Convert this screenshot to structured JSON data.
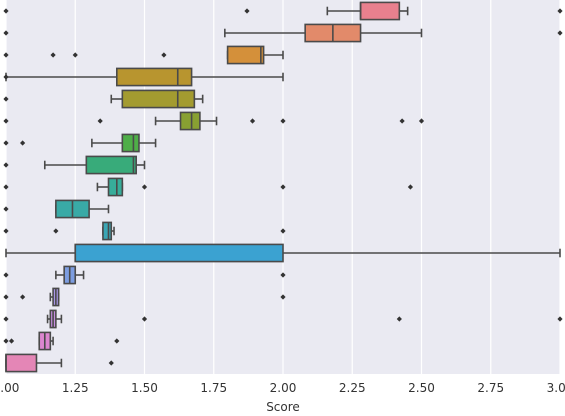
{
  "chart_data": {
    "type": "boxplot",
    "orientation": "horizontal",
    "xlabel": "Score",
    "xlim": [
      1.0,
      3.0
    ],
    "x_ticks": [
      "1.00",
      "1.25",
      "1.50",
      "1.75",
      "2.00",
      "2.25",
      "2.50",
      "2.75",
      "3.00"
    ],
    "grid": true,
    "legend": "none",
    "boxes": [
      {
        "color": "#e8808e",
        "whisker_low": 2.16,
        "q1": 2.28,
        "median": 2.28,
        "q3": 2.42,
        "whisker_high": 2.45,
        "outliers": [
          1.0,
          1.87,
          3.0
        ]
      },
      {
        "color": "#e28a6a",
        "whisker_low": 1.79,
        "q1": 2.08,
        "median": 2.18,
        "q3": 2.28,
        "whisker_high": 2.5,
        "outliers": [
          1.0,
          3.0
        ]
      },
      {
        "color": "#d4903a",
        "whisker_low": 1.8,
        "q1": 1.8,
        "median": 1.92,
        "q3": 1.93,
        "whisker_high": 2.0,
        "outliers": [
          1.0,
          1.17,
          1.25,
          1.57
        ]
      },
      {
        "color": "#b8952f",
        "whisker_low": 1.0,
        "q1": 1.4,
        "median": 1.62,
        "q3": 1.67,
        "whisker_high": 2.0,
        "outliers": [
          1.0
        ]
      },
      {
        "color": "#a39b30",
        "whisker_low": 1.38,
        "q1": 1.42,
        "median": 1.62,
        "q3": 1.68,
        "whisker_high": 1.71,
        "outliers": [
          1.0
        ]
      },
      {
        "color": "#88a032",
        "whisker_low": 1.54,
        "q1": 1.63,
        "median": 1.67,
        "q3": 1.7,
        "whisker_high": 1.76,
        "outliers": [
          1.0,
          1.34,
          1.89,
          2.0,
          2.43,
          2.5
        ]
      },
      {
        "color": "#4fae48",
        "whisker_low": 1.31,
        "q1": 1.42,
        "median": 1.46,
        "q3": 1.48,
        "whisker_high": 1.54,
        "outliers": [
          1.0,
          1.06
        ]
      },
      {
        "color": "#38ab7a",
        "whisker_low": 1.14,
        "q1": 1.29,
        "median": 1.46,
        "q3": 1.47,
        "whisker_high": 1.5,
        "outliers": [
          1.0
        ]
      },
      {
        "color": "#37ad9a",
        "whisker_low": 1.33,
        "q1": 1.37,
        "median": 1.4,
        "q3": 1.42,
        "whisker_high": 1.42,
        "outliers": [
          1.0,
          1.5,
          2.0,
          2.46
        ]
      },
      {
        "color": "#39aaa6",
        "whisker_low": 1.18,
        "q1": 1.18,
        "median": 1.24,
        "q3": 1.3,
        "whisker_high": 1.37,
        "outliers": [
          1.0
        ]
      },
      {
        "color": "#3ba6b4",
        "whisker_low": 1.35,
        "q1": 1.35,
        "median": 1.37,
        "q3": 1.38,
        "whisker_high": 1.39,
        "outliers": [
          1.0,
          1.18,
          2.0
        ]
      },
      {
        "color": "#3ba2d1",
        "whisker_low": 1.0,
        "q1": 1.25,
        "median": 1.25,
        "q3": 2.0,
        "whisker_high": 3.0,
        "outliers": []
      },
      {
        "color": "#7d9de0",
        "whisker_low": 1.18,
        "q1": 1.21,
        "median": 1.23,
        "q3": 1.25,
        "whisker_high": 1.28,
        "outliers": [
          1.0,
          2.0
        ]
      },
      {
        "color": "#a896e6",
        "whisker_low": 1.16,
        "q1": 1.17,
        "median": 1.18,
        "q3": 1.19,
        "whisker_high": 1.19,
        "outliers": [
          1.0,
          1.06,
          2.0
        ]
      },
      {
        "color": "#c78ee0",
        "whisker_low": 1.15,
        "q1": 1.16,
        "median": 1.17,
        "q3": 1.18,
        "whisker_high": 1.2,
        "outliers": [
          1.0,
          1.5,
          2.42,
          3.0
        ]
      },
      {
        "color": "#dc86cf",
        "whisker_low": 1.12,
        "q1": 1.12,
        "median": 1.14,
        "q3": 1.16,
        "whisker_high": 1.17,
        "outliers": [
          1.0,
          1.02,
          1.4
        ]
      },
      {
        "color": "#e486b6",
        "whisker_low": 1.0,
        "q1": 1.0,
        "median": 1.0,
        "q3": 1.11,
        "whisker_high": 1.2,
        "outliers": [
          1.38
        ]
      }
    ]
  }
}
